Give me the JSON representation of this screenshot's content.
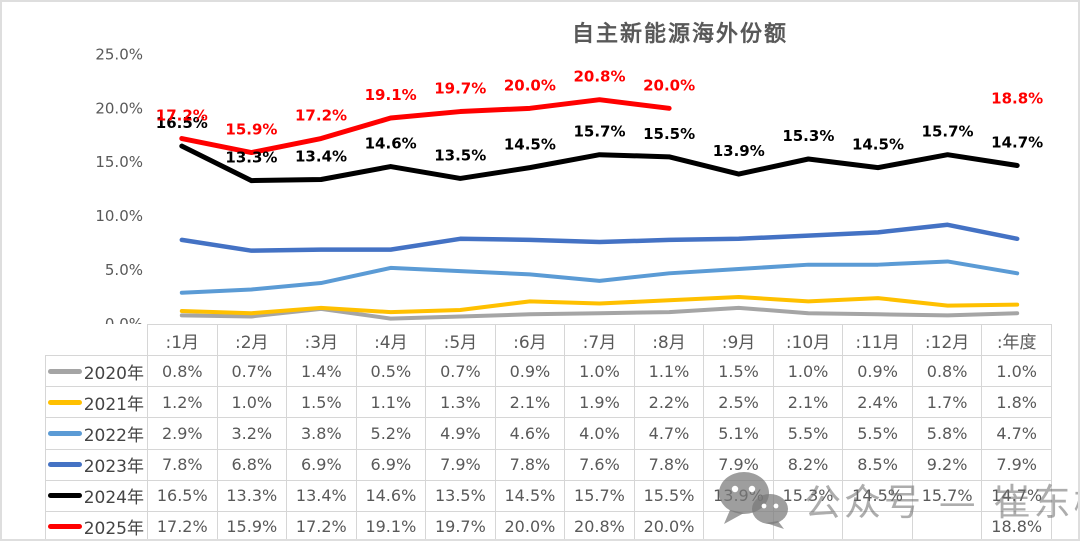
{
  "title": "自主新能源海外份额",
  "chart_data": {
    "type": "line",
    "title": "自主新能源海外份额",
    "categories": [
      ":1月",
      ":2月",
      ":3月",
      ":4月",
      ":5月",
      ":6月",
      ":7月",
      ":8月",
      ":9月",
      ":10月",
      ":11月",
      ":12月",
      ":年度"
    ],
    "ylim": [
      0,
      25
    ],
    "y_ticks": [
      {
        "value": 25,
        "label": "25.0%"
      },
      {
        "value": 20,
        "label": "20.0%"
      },
      {
        "value": 15,
        "label": "15.0%"
      },
      {
        "value": 10,
        "label": "10.0%"
      },
      {
        "value": 5,
        "label": "5.0%"
      },
      {
        "value": 0,
        "label": "0.0%"
      }
    ],
    "grid": false,
    "legend_position": "table-first-column",
    "series": [
      {
        "name": "2020年",
        "color": "#a5a5a5",
        "stroke_width": 4,
        "data_labels": false,
        "values": [
          0.8,
          0.7,
          1.4,
          0.5,
          0.7,
          0.9,
          1.0,
          1.1,
          1.5,
          1.0,
          0.9,
          0.8,
          1.0
        ]
      },
      {
        "name": "2021年",
        "color": "#ffc000",
        "stroke_width": 4,
        "data_labels": false,
        "values": [
          1.2,
          1.0,
          1.5,
          1.1,
          1.3,
          2.1,
          1.9,
          2.2,
          2.5,
          2.1,
          2.4,
          1.7,
          1.8
        ]
      },
      {
        "name": "2022年",
        "color": "#5b9bd5",
        "stroke_width": 4,
        "data_labels": false,
        "values": [
          2.9,
          3.2,
          3.8,
          5.2,
          4.9,
          4.6,
          4.0,
          4.7,
          5.1,
          5.5,
          5.5,
          5.8,
          4.7
        ]
      },
      {
        "name": "2023年",
        "color": "#4472c4",
        "stroke_width": 4.5,
        "data_labels": false,
        "values": [
          7.8,
          6.8,
          6.9,
          6.9,
          7.9,
          7.8,
          7.6,
          7.8,
          7.9,
          8.2,
          8.5,
          9.2,
          7.9
        ]
      },
      {
        "name": "2024年",
        "color": "#000000",
        "stroke_width": 5,
        "data_labels": true,
        "label_color": "#000000",
        "values": [
          16.5,
          13.3,
          13.4,
          14.6,
          13.5,
          14.5,
          15.7,
          15.5,
          13.9,
          15.3,
          14.5,
          15.7,
          14.7
        ]
      },
      {
        "name": "2025年",
        "color": "#ff0000",
        "stroke_width": 5,
        "data_labels": true,
        "label_color": "#ff0000",
        "values": [
          17.2,
          15.9,
          17.2,
          19.1,
          19.7,
          20.0,
          20.8,
          20.0,
          null,
          null,
          null,
          null,
          18.8
        ]
      }
    ]
  },
  "table": {
    "corner_label": "",
    "columns": [
      ":1月",
      ":2月",
      ":3月",
      ":4月",
      ":5月",
      ":6月",
      ":7月",
      ":8月",
      ":9月",
      ":10月",
      ":11月",
      ":12月",
      ":年度"
    ],
    "rows": [
      {
        "legend": "2020年",
        "color": "#a5a5a5",
        "cells": [
          "0.8%",
          "0.7%",
          "1.4%",
          "0.5%",
          "0.7%",
          "0.9%",
          "1.0%",
          "1.1%",
          "1.5%",
          "1.0%",
          "0.9%",
          "0.8%",
          "1.0%"
        ]
      },
      {
        "legend": "2021年",
        "color": "#ffc000",
        "cells": [
          "1.2%",
          "1.0%",
          "1.5%",
          "1.1%",
          "1.3%",
          "2.1%",
          "1.9%",
          "2.2%",
          "2.5%",
          "2.1%",
          "2.4%",
          "1.7%",
          "1.8%"
        ]
      },
      {
        "legend": "2022年",
        "color": "#5b9bd5",
        "cells": [
          "2.9%",
          "3.2%",
          "3.8%",
          "5.2%",
          "4.9%",
          "4.6%",
          "4.0%",
          "4.7%",
          "5.1%",
          "5.5%",
          "5.5%",
          "5.8%",
          "4.7%"
        ]
      },
      {
        "legend": "2023年",
        "color": "#4472c4",
        "cells": [
          "7.8%",
          "6.8%",
          "6.9%",
          "6.9%",
          "7.9%",
          "7.8%",
          "7.6%",
          "7.8%",
          "7.9%",
          "8.2%",
          "8.5%",
          "9.2%",
          "7.9%"
        ]
      },
      {
        "legend": "2024年",
        "color": "#000000",
        "cells": [
          "16.5%",
          "13.3%",
          "13.4%",
          "14.6%",
          "13.5%",
          "14.5%",
          "15.7%",
          "15.5%",
          "13.9%",
          "15.3%",
          "14.5%",
          "15.7%",
          "14.7%"
        ]
      },
      {
        "legend": "2025年",
        "color": "#ff0000",
        "cells": [
          "17.2%",
          "15.9%",
          "17.2%",
          "19.1%",
          "19.7%",
          "20.0%",
          "20.8%",
          "20.0%",
          "",
          "",
          "",
          "",
          "18.8%"
        ]
      }
    ]
  },
  "watermark": {
    "icon": "wechat-icon",
    "text": "公众号 — 崔东树"
  }
}
